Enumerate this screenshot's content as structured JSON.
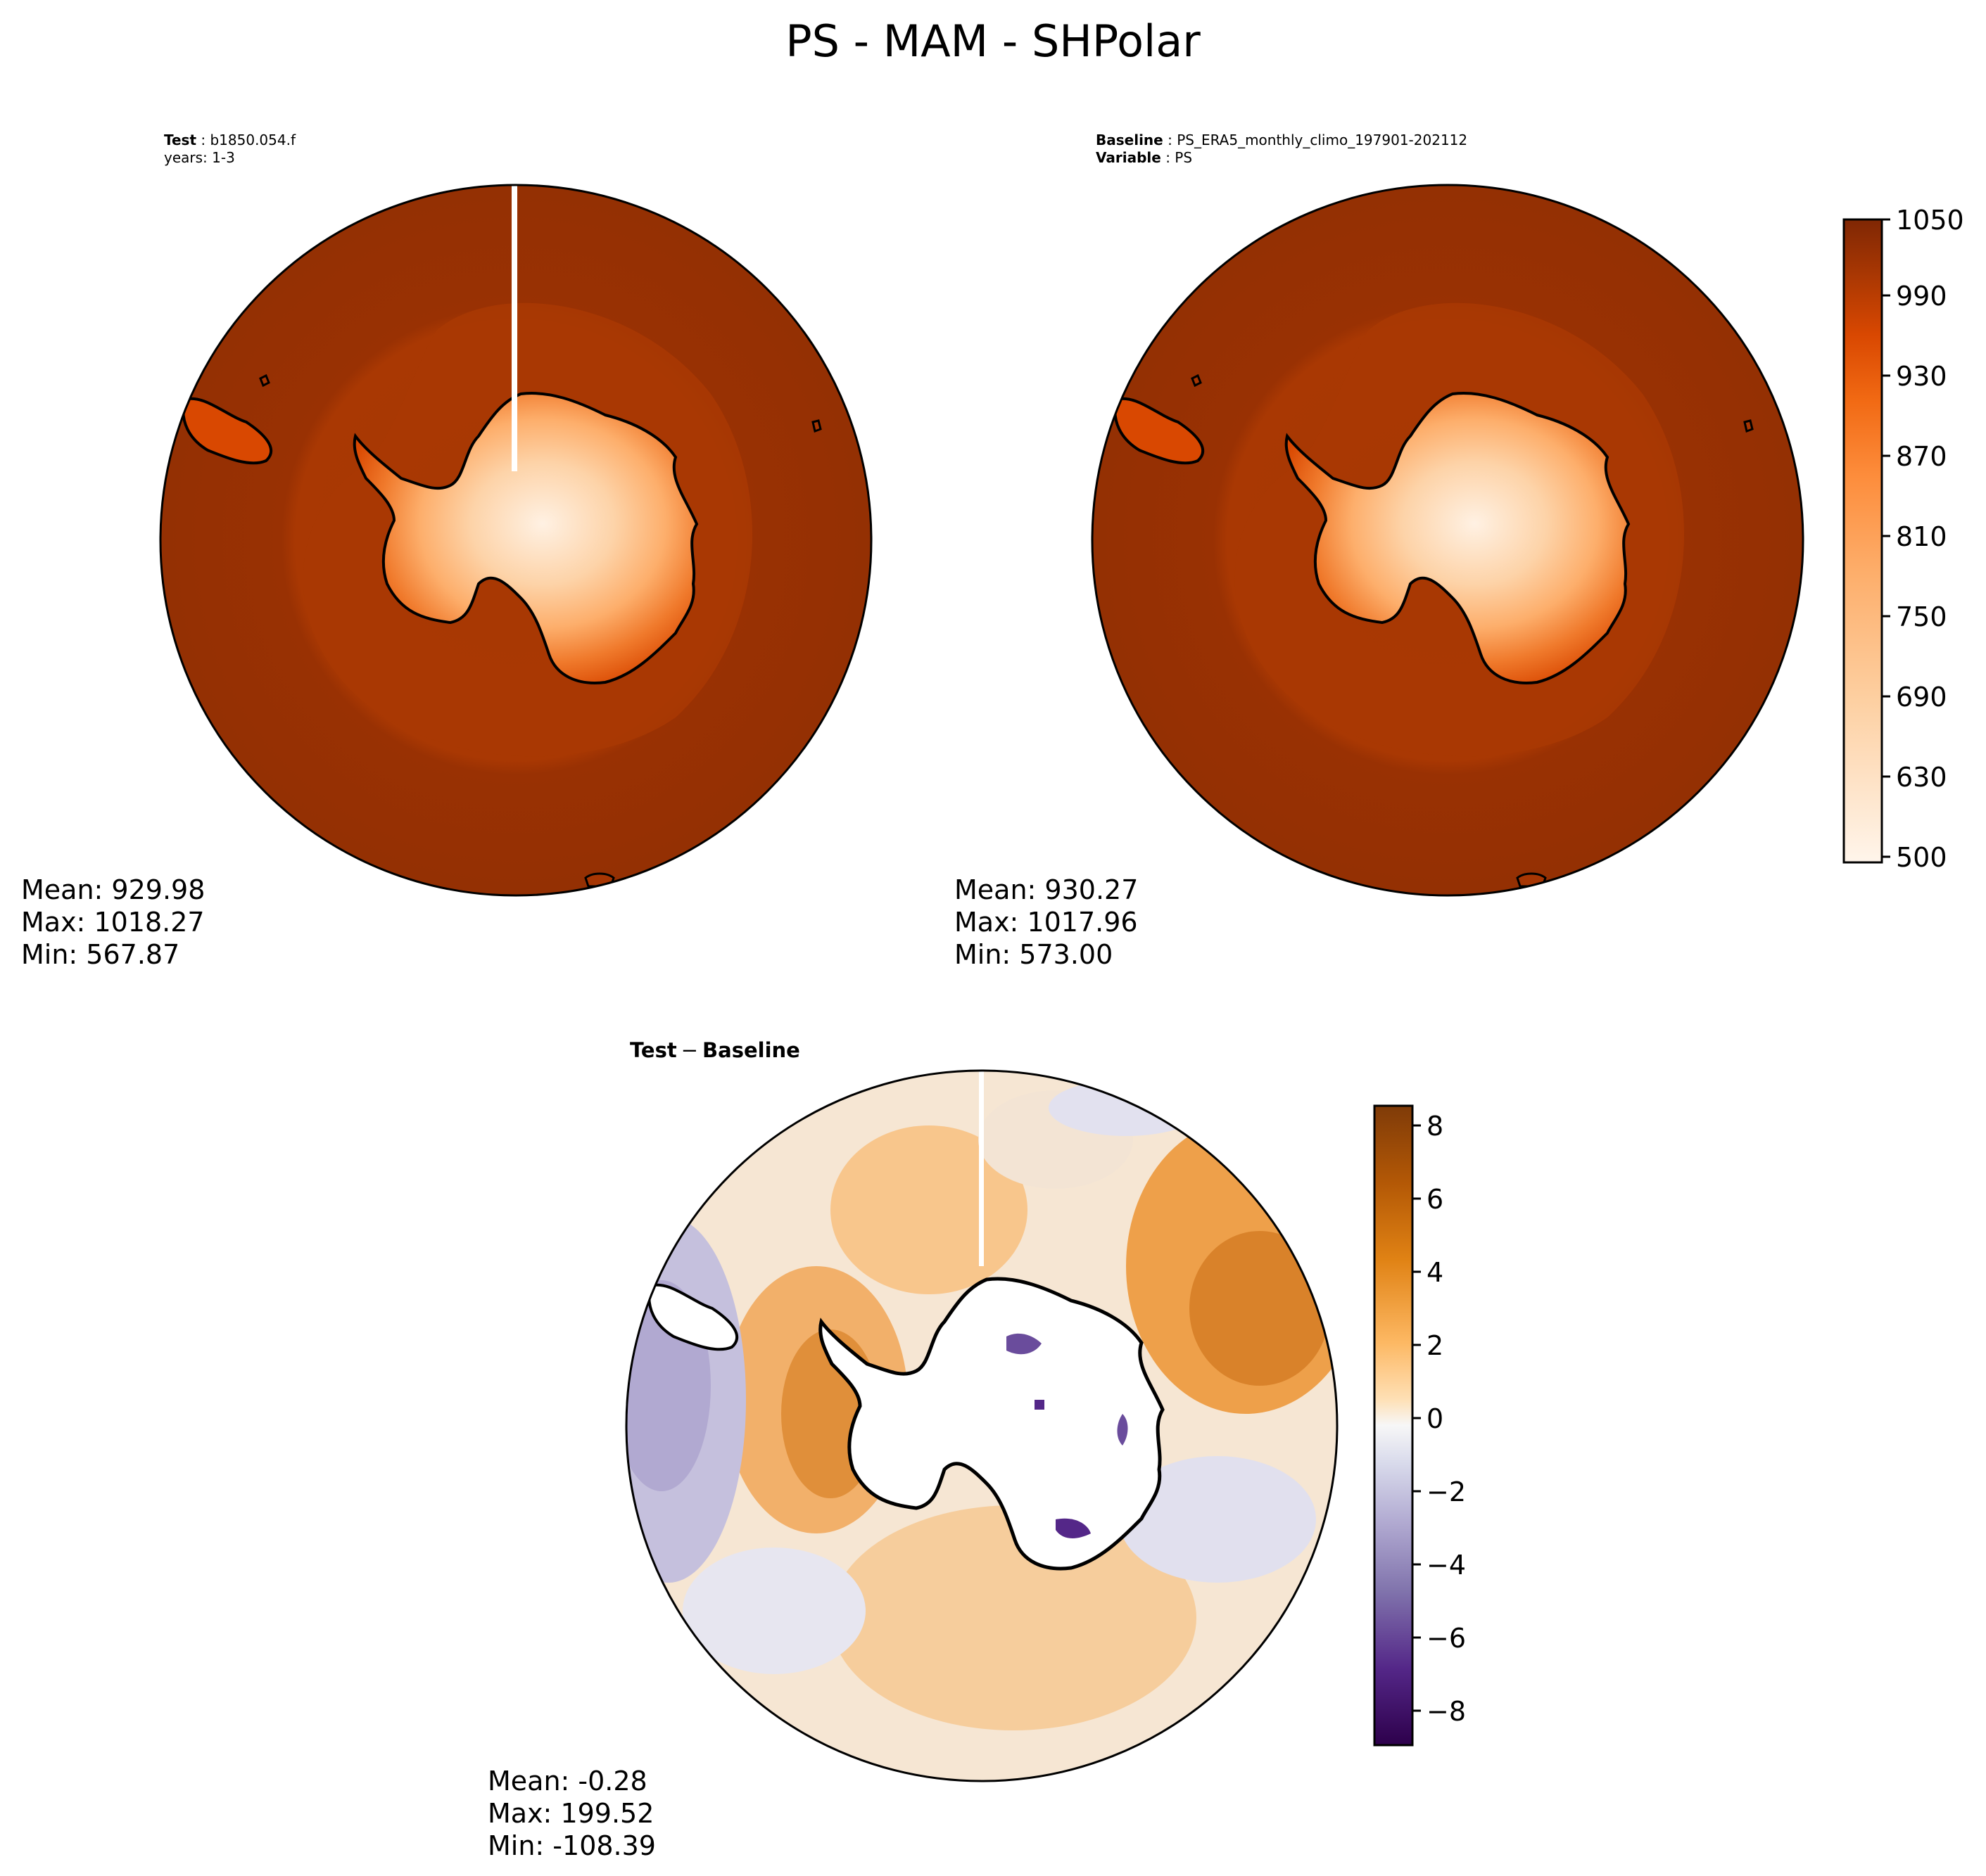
{
  "figure": {
    "title": "PS - MAM - SHPolar"
  },
  "panels": {
    "test": {
      "label_bold": "Test",
      "label_value": "b1850.054.f",
      "years": "years: 1-3",
      "stats": {
        "mean": "Mean: 929.98",
        "max": "Max: 1018.27",
        "min": "Min: 567.87"
      }
    },
    "baseline": {
      "label_bold": "Baseline",
      "label_value": "PS_ERA5_monthly_climo_197901-202112",
      "variable_bold": "Variable",
      "variable_value": "PS",
      "stats": {
        "mean": "Mean: 930.27",
        "max": "Max: 1017.96",
        "min": "Min: 573.00"
      }
    },
    "diff": {
      "title_a": "Test",
      "title_op": "−",
      "title_b": "Baseline",
      "stats": {
        "mean": "Mean: -0.28",
        "max": "Max: 199.52",
        "min": "Min: -108.39"
      }
    }
  },
  "colorbars": {
    "top": {
      "ticks": [
        "500",
        "630",
        "690",
        "750",
        "810",
        "870",
        "930",
        "990",
        "1050"
      ],
      "colormap": "Oranges",
      "colors": [
        "#fff5eb",
        "#fee6ce",
        "#fdd0a2",
        "#fdae6b",
        "#fd8d3c",
        "#f16913",
        "#d94801",
        "#a63603",
        "#7f2704"
      ]
    },
    "bottom": {
      "ticks": [
        "8",
        "6",
        "4",
        "2",
        "0",
        "−2",
        "−4",
        "−6",
        "−8"
      ],
      "colormap": "PuOr",
      "colors": [
        "#7f3b08",
        "#b35806",
        "#e08214",
        "#fdb863",
        "#fee0b6",
        "#f7f7f7",
        "#d8daeb",
        "#b2abd2",
        "#8073ac",
        "#542788",
        "#2d004b"
      ]
    }
  }
}
